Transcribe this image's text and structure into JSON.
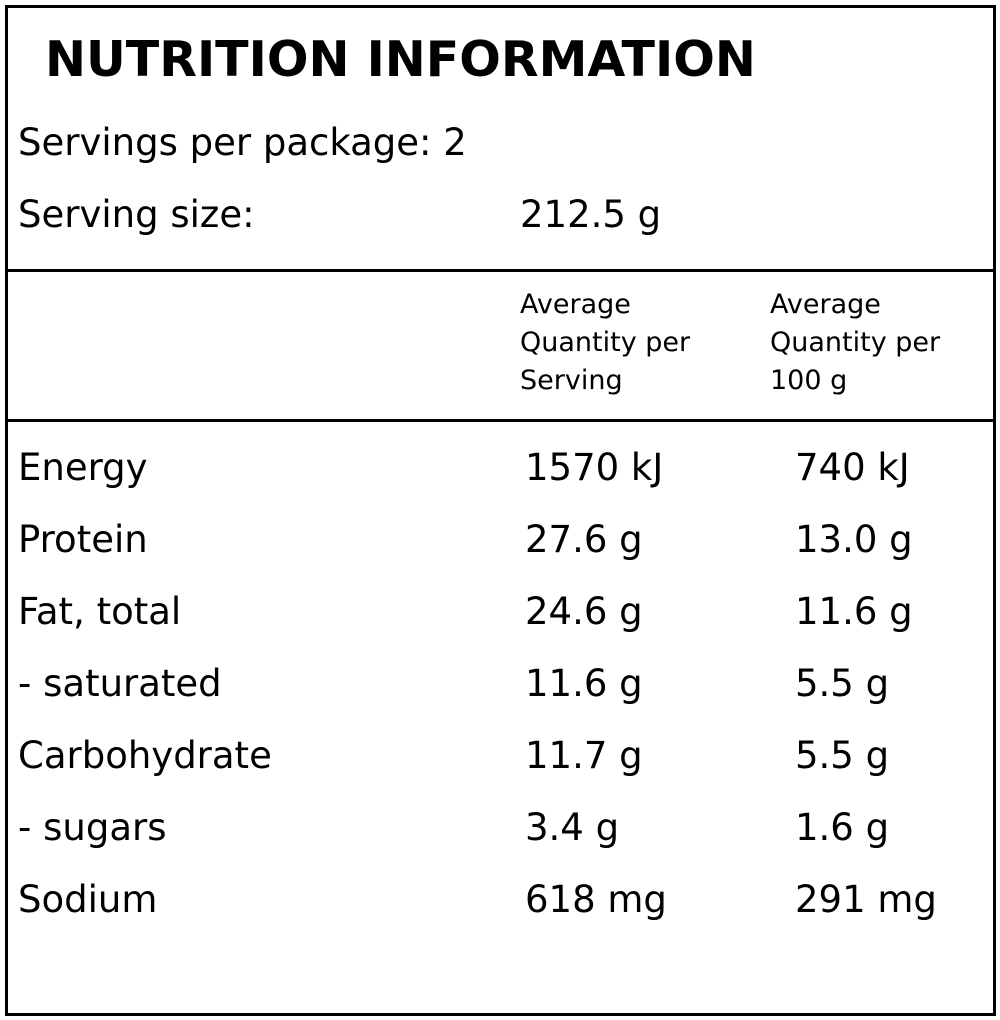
{
  "header": {
    "title": "NUTRITION INFORMATION",
    "servings_per_package": "Servings per package: 2",
    "serving_size_label": "Serving size:",
    "serving_size_value": "212.5 g"
  },
  "table": {
    "columns": [
      "Average Quantity per Serving",
      "Average Quantity per 100 g"
    ],
    "rows": [
      [
        "Energy",
        "1570 kJ",
        "740 kJ"
      ],
      [
        "Protein",
        "27.6 g",
        "13.0 g"
      ],
      [
        "Fat, total",
        "24.6 g",
        "11.6 g"
      ],
      [
        "- saturated",
        "11.6 g",
        "5.5 g"
      ],
      [
        "Carbohydrate",
        "11.7 g",
        "5.5 g"
      ],
      [
        "- sugars",
        "3.4 g",
        "1.6 g"
      ],
      [
        "Sodium",
        "618 mg",
        "291 mg"
      ]
    ]
  }
}
